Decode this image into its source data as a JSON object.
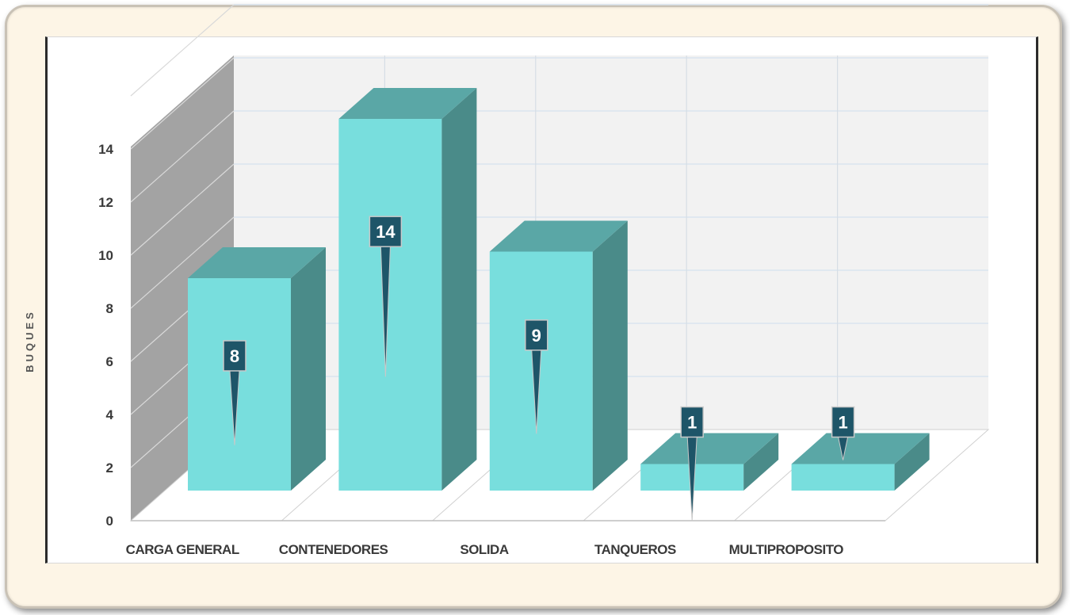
{
  "chart_data": {
    "type": "bar",
    "style": "3d-column",
    "title": "",
    "xlabel": "",
    "ylabel": "BUQUES",
    "categories": [
      "CARGA GENERAL",
      "CONTENEDORES",
      "SOLIDA",
      "TANQUEROS",
      "MULTIPROPOSITO"
    ],
    "values": [
      8,
      14,
      9,
      1,
      1
    ],
    "data_labels": [
      "8",
      "14",
      "9",
      "1",
      "1"
    ],
    "ylim": [
      0,
      14
    ],
    "y_ticks": [
      "0",
      "2",
      "4",
      "6",
      "8",
      "10",
      "12",
      "14"
    ],
    "grid": true,
    "legend": "none"
  },
  "colors": {
    "bar_front": "#78dedd",
    "bar_top": "#5aa7a6",
    "bar_side": "#4a8b89",
    "label_bg": "#1e5568",
    "side_wall": "#a3a3a3",
    "back_wall": "#f2f2f2",
    "frame_bg": "#fdf5e6"
  }
}
